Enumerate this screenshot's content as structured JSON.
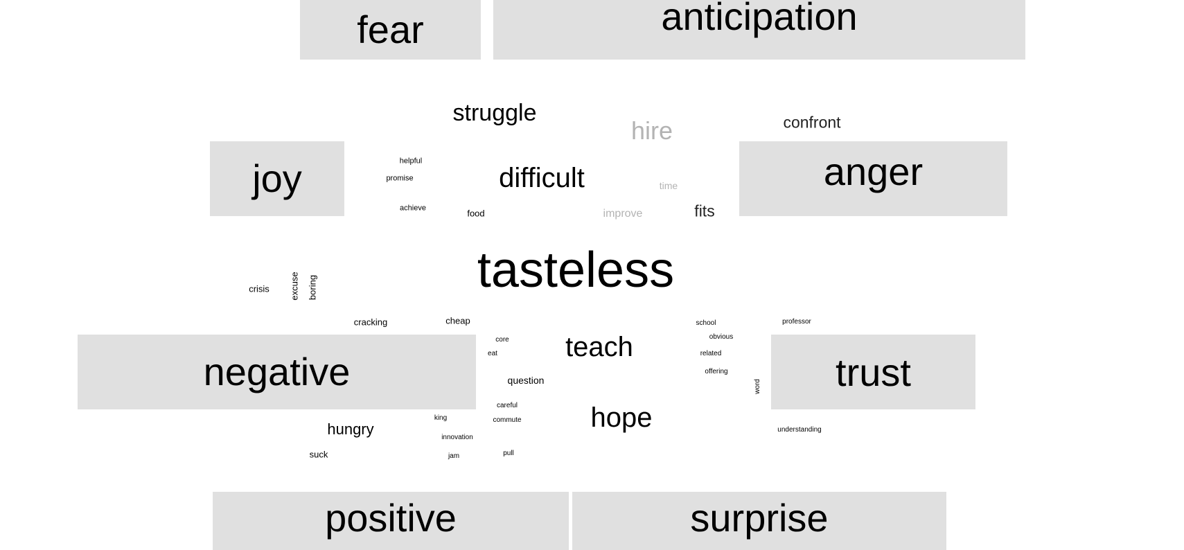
{
  "emotions": {
    "fear": "fear",
    "anticipation": "anticipation",
    "joy": "joy",
    "anger": "anger",
    "negative": "negative",
    "trust": "trust",
    "positive": "positive",
    "surprise": "surprise"
  },
  "words": {
    "tasteless": "tasteless",
    "struggle": "struggle",
    "hire": "hire",
    "confront": "confront",
    "difficult": "difficult",
    "time": "time",
    "fits": "fits",
    "improve": "improve",
    "helpful": "helpful",
    "promise": "promise",
    "achieve": "achieve",
    "food": "food",
    "crisis": "crisis",
    "excuse": "excuse",
    "boring": "boring",
    "cracking": "cracking",
    "cheap": "cheap",
    "core": "core",
    "eat": "eat",
    "teach": "teach",
    "question": "question",
    "school": "school",
    "obvious": "obvious",
    "related": "related",
    "offering": "offering",
    "word": "word",
    "professor": "professor",
    "hungry": "hungry",
    "king": "king",
    "careful": "careful",
    "commute": "commute",
    "innovation": "innovation",
    "suck": "suck",
    "jam": "jam",
    "pull": "pull",
    "hope": "hope",
    "understanding": "understanding"
  },
  "colors": {
    "box_fill": "#e0e0e0",
    "text_main": "#000000",
    "text_faded": "#b3b3b3"
  }
}
